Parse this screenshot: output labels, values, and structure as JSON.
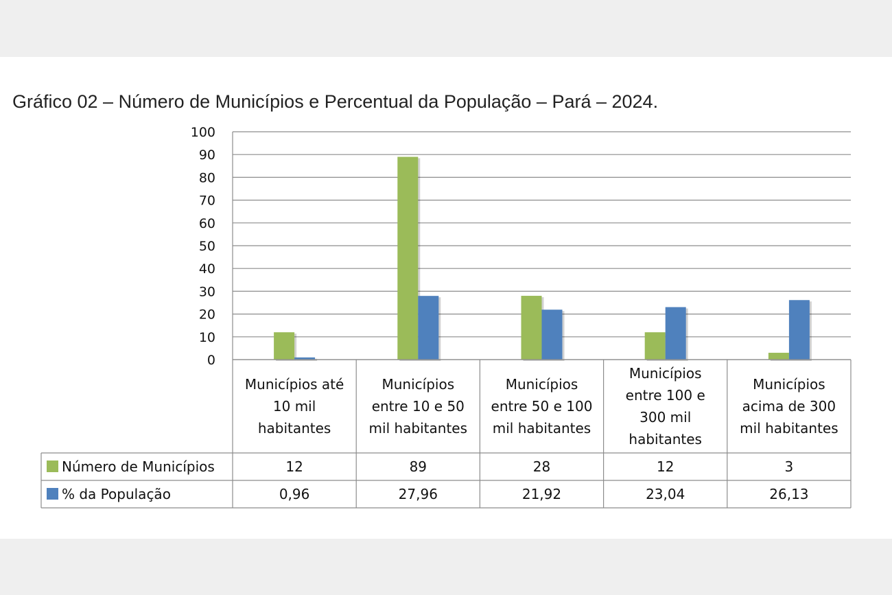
{
  "chart_data": {
    "type": "bar",
    "title": "Gráfico 02 – Número de Municípios e Percentual da População – Pará – 2024.",
    "categories": [
      [
        "Municípios até",
        "10 mil",
        "habitantes"
      ],
      [
        "Municípios",
        "entre 10 e 50",
        "mil habitantes"
      ],
      [
        "Municípios",
        "entre 50 e 100",
        "mil habitantes"
      ],
      [
        "Municípios",
        "entre 100 e",
        "300 mil",
        "habitantes"
      ],
      [
        "Municípios",
        "acima de 300",
        "mil habitantes"
      ]
    ],
    "series": [
      {
        "name": "Número de Municípios",
        "color": "#9bbb59",
        "values": [
          12,
          89,
          28,
          12,
          3
        ],
        "labels": [
          "12",
          "89",
          "28",
          "12",
          "3"
        ]
      },
      {
        "name": "% da População",
        "color": "#4f81bd",
        "values": [
          0.96,
          27.96,
          21.92,
          23.04,
          26.13
        ],
        "labels": [
          "0,96",
          "27,96",
          "21,92",
          "23,04",
          "26,13"
        ]
      }
    ],
    "ylim": [
      0,
      100
    ],
    "yticks": [
      0,
      10,
      20,
      30,
      40,
      50,
      60,
      70,
      80,
      90,
      100
    ],
    "grid": true,
    "legend": "data-table"
  }
}
